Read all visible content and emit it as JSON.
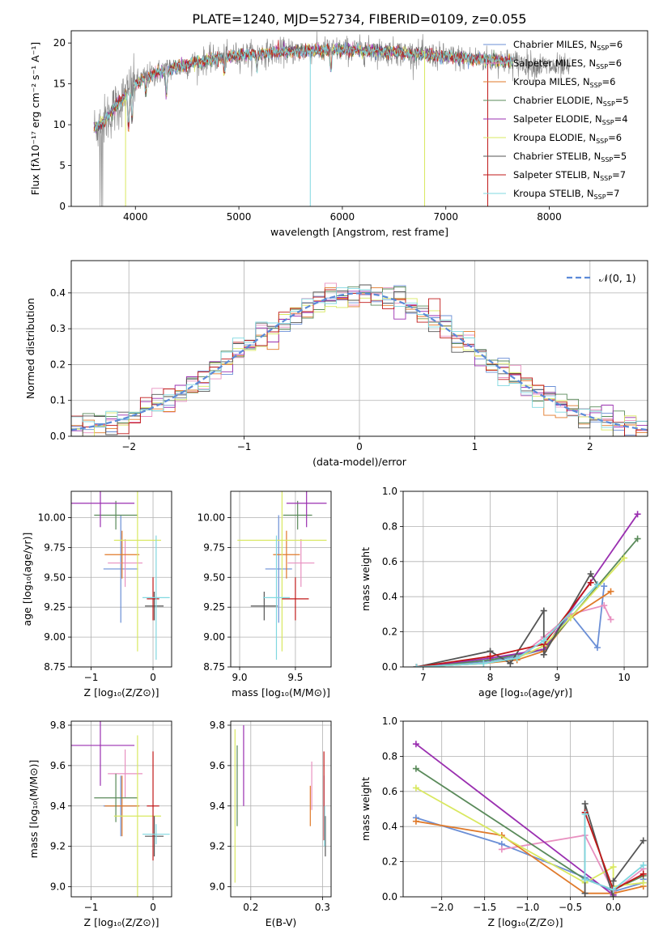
{
  "figure_title": "PLATE=1240, MJD=52734, FIBERID=0109, z=0.055",
  "colors": {
    "chabrier_miles": "#6b8fd6",
    "salpeter_miles": "#e890c0",
    "kroupa_miles": "#e07a2a",
    "chabrier_elodie": "#5a8a5a",
    "salpeter_elodie": "#9a2fb0",
    "kroupa_elodie": "#d9e860",
    "chabrier_stelib": "#555555",
    "salpeter_stelib": "#c01818",
    "kroupa_stelib": "#80d8e0",
    "data": "#808080",
    "gaussian": "#5b8ad8",
    "grid": "#b0b0b0"
  },
  "chart_data": [
    {
      "id": "spectrum",
      "type": "line",
      "xlabel": "wavelength [Angstrom, rest frame]",
      "ylabel": "Flux [fλ10⁻¹⁷ erg cm⁻² s⁻¹ A⁻¹]",
      "xlim": [
        3380,
        8950
      ],
      "ylim": [
        0,
        21.5
      ],
      "xticks": [
        4000,
        5000,
        6000,
        7000,
        8000
      ],
      "yticks": [
        0,
        5,
        10,
        15,
        20
      ],
      "grid": false,
      "legend": "right",
      "continuum_x": [
        3600,
        3700,
        3800,
        3900,
        4000,
        4100,
        4200,
        4300,
        4500,
        4700,
        5000,
        5500,
        6000,
        6500,
        7000,
        7500,
        8000,
        8500,
        8900
      ],
      "continuum_y": [
        9.5,
        10.5,
        12.0,
        13.5,
        15.0,
        15.8,
        16.3,
        16.7,
        17.3,
        17.9,
        18.5,
        19.0,
        19.2,
        18.9,
        18.3,
        17.9,
        17.1,
        16.4,
        15.6
      ],
      "data_x_range": [
        3600,
        8200
      ],
      "model_x_range": [
        3600,
        7650
      ],
      "series": [
        {
          "name": "Chabrier MILES, Nₛₛₚ=6",
          "color": "chabrier_miles"
        },
        {
          "name": "Salpeter MILES, Nₛₛₚ=6",
          "color": "salpeter_miles"
        },
        {
          "name": "Kroupa MILES, Nₛₛₚ=6",
          "color": "kroupa_miles"
        },
        {
          "name": "Chabrier ELODIE, Nₛₛₚ=5",
          "color": "chabrier_elodie"
        },
        {
          "name": "Salpeter ELODIE, Nₛₛₚ=4",
          "color": "salpeter_elodie"
        },
        {
          "name": "Kroupa ELODIE, Nₛₛₚ=6",
          "color": "kroupa_elodie"
        },
        {
          "name": "Chabrier STELIB, Nₛₛₚ=5",
          "color": "chabrier_stelib"
        },
        {
          "name": "Salpeter STELIB, Nₛₛₚ=7",
          "color": "salpeter_stelib"
        },
        {
          "name": "Kroupa STELIB, Nₛₛₚ=7",
          "color": "kroupa_stelib"
        }
      ],
      "legend_labels": [
        {
          "pre": "Chabrier MILES, N",
          "sub": "SSP",
          "post": "=6"
        },
        {
          "pre": "Salpeter MILES, N",
          "sub": "SSP",
          "post": "=6"
        },
        {
          "pre": "Kroupa MILES, N",
          "sub": "SSP",
          "post": "=6"
        },
        {
          "pre": "Chabrier ELODIE, N",
          "sub": "SSP",
          "post": "=5"
        },
        {
          "pre": "Salpeter ELODIE, N",
          "sub": "SSP",
          "post": "=4"
        },
        {
          "pre": "Kroupa ELODIE, N",
          "sub": "SSP",
          "post": "=6"
        },
        {
          "pre": "Chabrier STELIB, N",
          "sub": "SSP",
          "post": "=5"
        },
        {
          "pre": "Salpeter STELIB, N",
          "sub": "SSP",
          "post": "=7"
        },
        {
          "pre": "Kroupa STELIB, N",
          "sub": "SSP",
          "post": "=7"
        }
      ]
    },
    {
      "id": "residuals",
      "type": "histogram",
      "xlabel": "(data-model)/error",
      "ylabel": "Normed distribution",
      "xlim": [
        -2.5,
        2.5
      ],
      "ylim": [
        0,
        0.49
      ],
      "xticks": [
        -2,
        -1,
        0,
        1,
        2
      ],
      "yticks": [
        0.0,
        0.1,
        0.2,
        0.3,
        0.4
      ],
      "grid": true,
      "legend": "top-right",
      "legend_label": "𝒩(0, 1)",
      "bin_width": 0.1,
      "gaussian": {
        "mean": 0,
        "sigma": 1
      }
    },
    {
      "id": "age_vs_Z",
      "type": "errorbar",
      "xlabel": "Z [log₁₀(Z/Z⊙)]",
      "ylabel": "age  [log₁₀(age/yr)]",
      "xlim": [
        -1.32,
        0.3
      ],
      "ylim": [
        8.75,
        10.22
      ],
      "xticks": [
        -1,
        0
      ],
      "yticks": [
        8.75,
        9.0,
        9.25,
        9.5,
        9.75,
        10.0
      ],
      "grid": true,
      "points": [
        {
          "color": "chabrier_miles",
          "x": -0.52,
          "xerr": 0.28,
          "y": 9.57,
          "yerr": 0.45
        },
        {
          "color": "salpeter_miles",
          "x": -0.45,
          "xerr": 0.28,
          "y": 9.62,
          "yerr": 0.2
        },
        {
          "color": "kroupa_miles",
          "x": -0.5,
          "xerr": 0.28,
          "y": 9.69,
          "yerr": 0.2
        },
        {
          "color": "chabrier_elodie",
          "x": -0.6,
          "xerr": 0.35,
          "y": 10.02,
          "yerr": 0.12
        },
        {
          "color": "salpeter_elodie",
          "x": -0.85,
          "xerr": 0.55,
          "y": 10.12,
          "yerr": 0.2
        },
        {
          "color": "kroupa_elodie",
          "x": -0.25,
          "xerr": 0.38,
          "y": 9.81,
          "yerr": 0.93
        },
        {
          "color": "chabrier_stelib",
          "x": 0.02,
          "xerr": 0.15,
          "y": 9.26,
          "yerr": 0.12
        },
        {
          "color": "salpeter_stelib",
          "x": 0.0,
          "xerr": 0.1,
          "y": 9.32,
          "yerr": 0.18
        },
        {
          "color": "kroupa_stelib",
          "x": 0.05,
          "xerr": 0.22,
          "y": 9.33,
          "yerr": 0.52
        }
      ]
    },
    {
      "id": "age_vs_mass",
      "type": "errorbar",
      "xlabel": "mass [log₁₀(M/M⊙)]",
      "ylabel": "",
      "xlim": [
        8.92,
        9.82
      ],
      "ylim": [
        8.75,
        10.22
      ],
      "xticks": [
        9.0,
        9.5
      ],
      "yticks": [
        8.75,
        9.0,
        9.25,
        9.5,
        9.75,
        10.0
      ],
      "grid": true,
      "points": [
        {
          "color": "chabrier_miles",
          "x": 9.35,
          "xerr": 0.12,
          "y": 9.57,
          "yerr": 0.45
        },
        {
          "color": "salpeter_miles",
          "x": 9.55,
          "xerr": 0.12,
          "y": 9.62,
          "yerr": 0.2
        },
        {
          "color": "kroupa_miles",
          "x": 9.42,
          "xerr": 0.12,
          "y": 9.69,
          "yerr": 0.2
        },
        {
          "color": "chabrier_elodie",
          "x": 9.52,
          "xerr": 0.13,
          "y": 10.02,
          "yerr": 0.12
        },
        {
          "color": "salpeter_elodie",
          "x": 9.6,
          "xerr": 0.18,
          "y": 10.12,
          "yerr": 0.2
        },
        {
          "color": "kroupa_elodie",
          "x": 9.38,
          "xerr": 0.4,
          "y": 9.81,
          "yerr": 0.93
        },
        {
          "color": "chabrier_stelib",
          "x": 9.22,
          "xerr": 0.12,
          "y": 9.26,
          "yerr": 0.12
        },
        {
          "color": "salpeter_stelib",
          "x": 9.5,
          "xerr": 0.12,
          "y": 9.32,
          "yerr": 0.18
        },
        {
          "color": "kroupa_stelib",
          "x": 9.33,
          "xerr": 0.12,
          "y": 9.33,
          "yerr": 0.52
        }
      ]
    },
    {
      "id": "weight_vs_age",
      "type": "line",
      "xlabel": "age  [log₁₀(age/yr)]",
      "ylabel": "mass weight",
      "xlim": [
        6.7,
        10.35
      ],
      "ylim": [
        0,
        1.0
      ],
      "xticks": [
        7,
        8,
        9,
        10
      ],
      "yticks": [
        0.0,
        0.2,
        0.4,
        0.6,
        0.8,
        1.0
      ],
      "grid": true,
      "series": [
        {
          "color": "chabrier_miles",
          "x": [
            6.9,
            7.9,
            8.4,
            8.8,
            9.2,
            9.6,
            9.7
          ],
          "y": [
            0.0,
            0.03,
            0.06,
            0.1,
            0.3,
            0.11,
            0.46
          ]
        },
        {
          "color": "salpeter_miles",
          "x": [
            6.9,
            7.9,
            8.4,
            8.8,
            9.2,
            9.7,
            9.8
          ],
          "y": [
            0.0,
            0.02,
            0.05,
            0.17,
            0.3,
            0.35,
            0.27
          ]
        },
        {
          "color": "kroupa_miles",
          "x": [
            6.9,
            7.9,
            8.4,
            8.8,
            9.2,
            9.8
          ],
          "y": [
            0.0,
            0.02,
            0.04,
            0.09,
            0.28,
            0.43
          ]
        },
        {
          "color": "chabrier_elodie",
          "x": [
            6.9,
            8.0,
            8.8,
            10.2
          ],
          "y": [
            0.0,
            0.04,
            0.1,
            0.73
          ]
        },
        {
          "color": "salpeter_elodie",
          "x": [
            6.9,
            8.0,
            8.8,
            10.2
          ],
          "y": [
            0.0,
            0.05,
            0.1,
            0.87
          ]
        },
        {
          "color": "kroupa_elodie",
          "x": [
            6.9,
            7.9,
            8.4,
            8.8,
            9.2,
            10.0
          ],
          "y": [
            0.0,
            0.02,
            0.05,
            0.12,
            0.28,
            0.62
          ]
        },
        {
          "color": "chabrier_stelib",
          "x": [
            6.9,
            8.0,
            8.3,
            8.8,
            8.8,
            9.5,
            9.6
          ],
          "y": [
            0.0,
            0.09,
            0.02,
            0.32,
            0.07,
            0.53,
            0.47
          ]
        },
        {
          "color": "salpeter_stelib",
          "x": [
            6.9,
            8.0,
            8.8,
            9.5
          ],
          "y": [
            0.0,
            0.06,
            0.13,
            0.48
          ]
        },
        {
          "color": "kroupa_stelib",
          "x": [
            6.9,
            7.9,
            8.4,
            8.8,
            9.6
          ],
          "y": [
            0.0,
            0.02,
            0.05,
            0.15,
            0.47
          ]
        }
      ]
    },
    {
      "id": "mass_vs_Z",
      "type": "errorbar",
      "xlabel": "Z [log₁₀(Z/Z⊙)]",
      "ylabel": "mass [log₁₀(M/M⊙)]",
      "xlim": [
        -1.32,
        0.3
      ],
      "ylim": [
        8.95,
        9.82
      ],
      "xticks": [
        -1,
        0
      ],
      "yticks": [
        9.0,
        9.2,
        9.4,
        9.6,
        9.8
      ],
      "grid": true,
      "points": [
        {
          "color": "chabrier_miles",
          "x": -0.52,
          "xerr": 0.28,
          "y": 9.4,
          "yerr": 0.15
        },
        {
          "color": "salpeter_miles",
          "x": -0.45,
          "xerr": 0.28,
          "y": 9.56,
          "yerr": 0.12
        },
        {
          "color": "kroupa_miles",
          "x": -0.5,
          "xerr": 0.28,
          "y": 9.4,
          "yerr": 0.15
        },
        {
          "color": "chabrier_elodie",
          "x": -0.6,
          "xerr": 0.35,
          "y": 9.44,
          "yerr": 0.12
        },
        {
          "color": "salpeter_elodie",
          "x": -0.85,
          "xerr": 0.55,
          "y": 9.7,
          "yerr": 0.2
        },
        {
          "color": "kroupa_elodie",
          "x": -0.25,
          "xerr": 0.38,
          "y": 9.35,
          "yerr": 0.4
        },
        {
          "color": "chabrier_stelib",
          "x": 0.02,
          "xerr": 0.15,
          "y": 9.25,
          "yerr": 0.1
        },
        {
          "color": "salpeter_stelib",
          "x": 0.0,
          "xerr": 0.1,
          "y": 9.4,
          "yerr": 0.27
        },
        {
          "color": "kroupa_stelib",
          "x": 0.05,
          "xerr": 0.22,
          "y": 9.26,
          "yerr": 0.05
        }
      ]
    },
    {
      "id": "mass_vs_ebv",
      "type": "errorbar",
      "xlabel": "E(B-V)",
      "ylabel": "",
      "xlim": [
        0.172,
        0.312
      ],
      "ylim": [
        8.95,
        9.82
      ],
      "xticks": [
        0.2,
        0.3
      ],
      "yticks": [
        9.0,
        9.2,
        9.4,
        9.6,
        9.8
      ],
      "grid": true,
      "points": [
        {
          "color": "chabrier_miles",
          "x": 0.302,
          "xerr": 0.0,
          "y": 9.4,
          "yerr": 0.15
        },
        {
          "color": "salpeter_miles",
          "x": 0.285,
          "xerr": 0.0,
          "y": 9.5,
          "yerr": 0.12
        },
        {
          "color": "kroupa_miles",
          "x": 0.283,
          "xerr": 0.0,
          "y": 9.4,
          "yerr": 0.1
        },
        {
          "color": "chabrier_elodie",
          "x": 0.181,
          "xerr": 0.0,
          "y": 9.5,
          "yerr": 0.2
        },
        {
          "color": "salpeter_elodie",
          "x": 0.19,
          "xerr": 0.0,
          "y": 9.6,
          "yerr": 0.2
        },
        {
          "color": "kroupa_elodie",
          "x": 0.178,
          "xerr": 0.0,
          "y": 9.4,
          "yerr": 0.38
        },
        {
          "color": "chabrier_stelib",
          "x": 0.304,
          "xerr": 0.0,
          "y": 9.25,
          "yerr": 0.1
        },
        {
          "color": "salpeter_stelib",
          "x": 0.302,
          "xerr": 0.0,
          "y": 9.45,
          "yerr": 0.22
        },
        {
          "color": "kroupa_stelib",
          "x": 0.303,
          "xerr": 0.0,
          "y": 9.3,
          "yerr": 0.1
        }
      ]
    },
    {
      "id": "weight_vs_Z",
      "type": "line",
      "xlabel": "Z [log₁₀(Z/Z⊙)]",
      "ylabel": "mass weight",
      "xlim": [
        -2.45,
        0.4
      ],
      "ylim": [
        0,
        1.0
      ],
      "xticks": [
        -2.0,
        -1.5,
        -1.0,
        -0.5,
        0.0
      ],
      "yticks": [
        0.0,
        0.2,
        0.4,
        0.6,
        0.8,
        1.0
      ],
      "grid": true,
      "series": [
        {
          "color": "chabrier_miles",
          "x": [
            -2.3,
            -1.3,
            -0.33,
            0.0,
            0.35,
            0.35
          ],
          "y": [
            0.45,
            0.3,
            0.11,
            0.03,
            0.08,
            0.1
          ]
        },
        {
          "color": "salpeter_miles",
          "x": [
            -1.3,
            -0.33,
            0.0,
            0.35
          ],
          "y": [
            0.27,
            0.35,
            0.03,
            0.16
          ]
        },
        {
          "color": "kroupa_miles",
          "x": [
            -2.3,
            -1.3,
            -0.33,
            0.0,
            0.35
          ],
          "y": [
            0.43,
            0.35,
            0.02,
            0.02,
            0.06
          ]
        },
        {
          "color": "chabrier_elodie",
          "x": [
            -2.3,
            -0.33,
            0.0,
            0.35
          ],
          "y": [
            0.73,
            0.1,
            0.04,
            0.12
          ]
        },
        {
          "color": "salpeter_elodie",
          "x": [
            -2.3,
            0.0
          ],
          "y": [
            0.87,
            0.01
          ]
        },
        {
          "color": "kroupa_elodie",
          "x": [
            -2.3,
            -0.33,
            0.0,
            0.0,
            0.35
          ],
          "y": [
            0.62,
            0.08,
            0.17,
            0.06,
            0.08
          ]
        },
        {
          "color": "chabrier_stelib",
          "x": [
            -0.33,
            -0.33,
            0.0,
            0.0,
            0.35
          ],
          "y": [
            0.02,
            0.53,
            0.0,
            0.09,
            0.32
          ]
        },
        {
          "color": "salpeter_stelib",
          "x": [
            -0.33,
            0.0,
            0.35
          ],
          "y": [
            0.48,
            0.04,
            0.13
          ]
        },
        {
          "color": "kroupa_stelib",
          "x": [
            -0.33,
            -0.33,
            0.0,
            0.35
          ],
          "y": [
            0.47,
            0.1,
            0.04,
            0.18
          ]
        }
      ]
    }
  ]
}
